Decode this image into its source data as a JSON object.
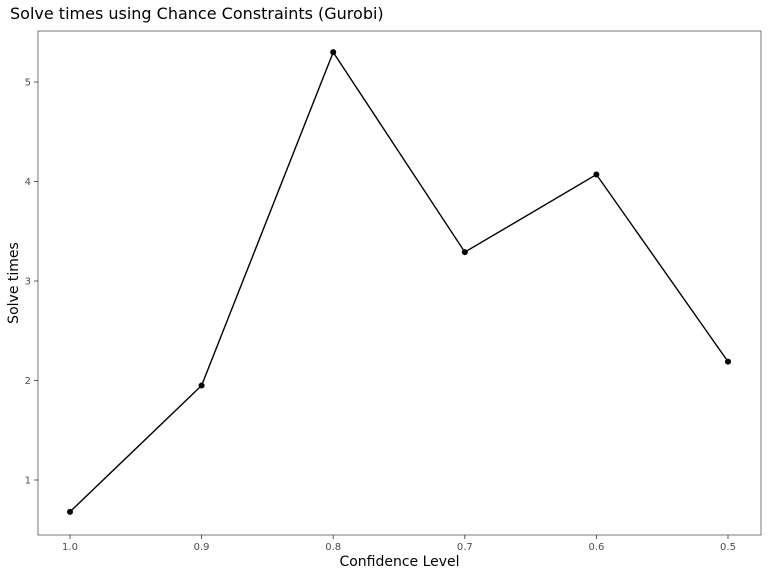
{
  "chart_data": {
    "type": "line",
    "title": "Solve times using Chance Constraints (Gurobi)",
    "xlabel": "Confidence Level",
    "ylabel": "Solve times",
    "x": [
      1.0,
      0.9,
      0.8,
      0.7,
      0.6,
      0.5
    ],
    "x_tick_labels": [
      "1.0",
      "0.9",
      "0.8",
      "0.7",
      "0.6",
      "0.5"
    ],
    "x_reversed": true,
    "y_ticks": [
      1,
      2,
      3,
      4,
      5
    ],
    "xlim": [
      1.0,
      0.5
    ],
    "ylim": [
      0.45,
      5.5
    ],
    "series": [
      {
        "values": [
          0.68,
          1.95,
          5.3,
          3.29,
          4.07,
          2.19
        ],
        "color": "#000000"
      }
    ],
    "grid": false,
    "legend": "none"
  }
}
